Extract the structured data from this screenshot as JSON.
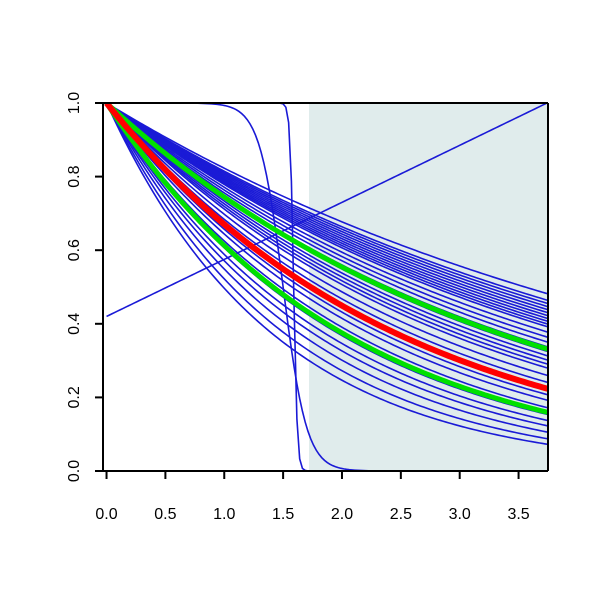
{
  "chart_data": {
    "type": "line",
    "title": "",
    "xlabel": "",
    "ylabel": "",
    "xlim": [
      -0.03,
      3.75
    ],
    "ylim": [
      0.0,
      1.0
    ],
    "grid": false,
    "legend": "none",
    "x_ticks": [
      "0.0",
      "0.5",
      "1.0",
      "1.5",
      "2.0",
      "2.5",
      "3.0",
      "3.5"
    ],
    "y_ticks": [
      "0.0",
      "0.2",
      "0.4",
      "0.6",
      "0.8",
      "1.0"
    ],
    "shaded_region": {
      "x_from": 1.72,
      "x_to": 3.75,
      "color": "#e0ecec"
    },
    "colors": {
      "ensemble": "#1a1ad6",
      "highlight": "#ff0000",
      "band": "#00e000",
      "axes": "#000000"
    },
    "ensemble_exponential_rates": [
      0.195,
      0.205,
      0.21,
      0.215,
      0.22,
      0.225,
      0.23,
      0.235,
      0.24,
      0.245,
      0.25,
      0.26,
      0.27,
      0.28,
      0.29,
      0.3,
      0.31,
      0.32,
      0.33,
      0.34,
      0.36,
      0.38,
      0.4,
      0.42,
      0.44,
      0.47,
      0.5,
      0.53,
      0.56,
      0.6,
      0.65,
      0.7
    ],
    "special_curves": [
      {
        "kind": "logistic",
        "midpoint": 1.59,
        "scale": 0.015
      },
      {
        "kind": "logistic",
        "midpoint": 1.5,
        "scale": 0.1
      },
      {
        "kind": "linear",
        "intercept": 0.42,
        "slope": 0.155
      }
    ],
    "highlight_curve": {
      "rate": 0.4
    },
    "band_curves": [
      {
        "rate": 0.295
      },
      {
        "rate": 0.49
      }
    ]
  }
}
